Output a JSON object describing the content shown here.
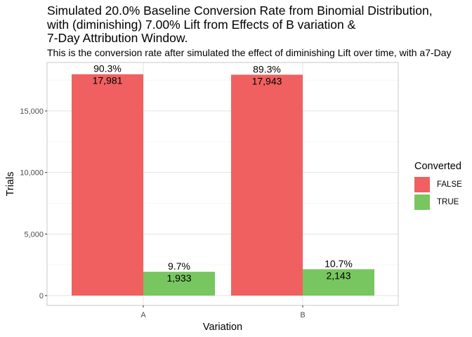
{
  "chart_data": {
    "type": "bar",
    "title_lines": [
      "Simulated 20.0% Baseline Conversion Rate from Binomial Distribution,",
      "with (diminishing) 7.00% Lift from Effects of B variation &",
      "7-Day Attribution Window."
    ],
    "subtitle": "This is the conversion rate after simulated the effect of diminishing Lift over time, with a7-Day",
    "xlabel": "Variation",
    "ylabel": "Trials",
    "categories": [
      "A",
      "B"
    ],
    "ylim": [
      0,
      19000
    ],
    "yticks": [
      0,
      5000,
      10000,
      15000
    ],
    "ytick_labels": [
      "0",
      "5,000",
      "10,000",
      "15,000"
    ],
    "grid": true,
    "legend": {
      "title": "Converted",
      "position": "right"
    },
    "series": [
      {
        "name": "FALSE",
        "color": "#F06060",
        "values": [
          17981,
          17943
        ],
        "value_labels": [
          "17,981",
          "17,943"
        ],
        "pct_labels": [
          "90.3%",
          "89.3%"
        ]
      },
      {
        "name": "TRUE",
        "color": "#78C660",
        "values": [
          1933,
          2143
        ],
        "value_labels": [
          "1,933",
          "2,143"
        ],
        "pct_labels": [
          "9.7%",
          "10.7%"
        ]
      }
    ]
  }
}
